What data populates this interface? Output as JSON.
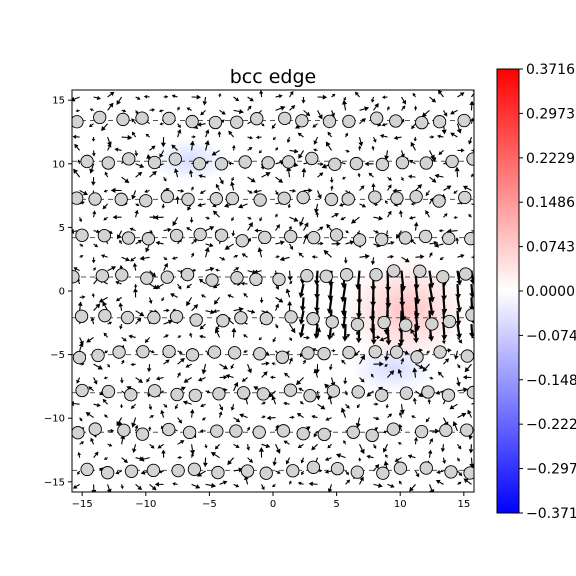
{
  "chart_data": {
    "type": "quiver",
    "title": "bcc edge",
    "xlabel": "",
    "ylabel": "",
    "xlim": [
      -15.8,
      15.8
    ],
    "ylim": [
      -15.8,
      15.8
    ],
    "xticks": [
      -15,
      -10,
      -5,
      0,
      5,
      10,
      15
    ],
    "yticks": [
      -15,
      -10,
      -5,
      0,
      5,
      10,
      15
    ],
    "xtick_labels": [
      "−15",
      "−10",
      "−5",
      "0",
      "5",
      "10",
      "15"
    ],
    "ytick_labels": [
      "−15",
      "−10",
      "−5",
      "0",
      "5",
      "10",
      "15"
    ],
    "colorbar": {
      "cmap": "bwr",
      "vmin": -0.3716,
      "vmax": 0.3716,
      "ticks": [
        0.3716,
        0.2973,
        0.2229,
        0.1486,
        0.0743,
        0.0,
        -0.0743,
        -0.1486,
        -0.2229,
        -0.2973,
        -0.3716
      ],
      "tick_labels": [
        "0.3716",
        "0.2973",
        "0.2229",
        "0.1486",
        "0.0743",
        "0.0000",
        "−0.0743",
        "−0.1486",
        "−0.2229",
        "−0.2973",
        "−0.3716"
      ]
    },
    "atom_rows_y": [
      13.4,
      10.2,
      7.2,
      4.2,
      1.1,
      -2.1,
      -5.0,
      -8.0,
      -11.1,
      -14.1
    ],
    "atom_spacing_x": 1.8,
    "dislocation_core": {
      "x": 9.0,
      "y": -0.5
    },
    "colors": {
      "atom_fill": "#d3d3d3",
      "atom_edge": "#000000",
      "positive": "#ff0000",
      "negative": "#0000ff",
      "zero": "#ffffff"
    }
  }
}
